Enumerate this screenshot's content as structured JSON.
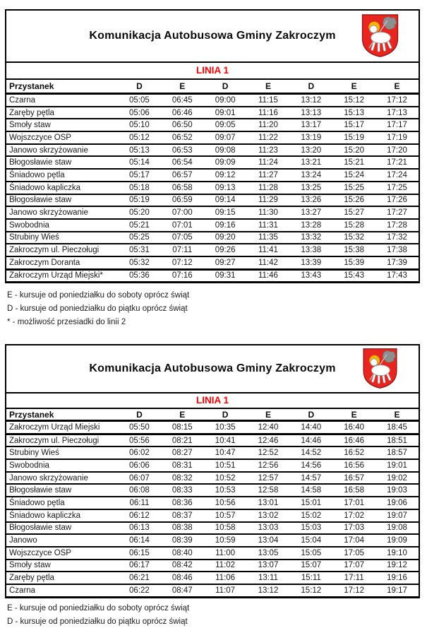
{
  "document": {
    "title": "Komunikacja Autobusowa Gminy Zakroczym",
    "line_label": "LINIA 1",
    "line_label_color": "#fe0000",
    "crest_icon": "zakroczym-coat-of-arms-icon",
    "crest_colors": {
      "shield": "#e8251f",
      "halo": "#f2b705",
      "lamb": "#ffffff",
      "banner": "#8e8e8e"
    }
  },
  "tables": [
    {
      "columns": [
        "Przystanek",
        "D",
        "E",
        "D",
        "E",
        "D",
        "E",
        "E"
      ],
      "rows": [
        {
          "stop": "Czarna",
          "times": [
            "05:05",
            "06:45",
            "09:00",
            "11:15",
            "13:12",
            "15:12",
            "17:12"
          ]
        },
        {
          "stop": "Zaręby pętla",
          "times": [
            "05:06",
            "06:46",
            "09:01",
            "11:16",
            "13:13",
            "15:13",
            "17:13"
          ]
        },
        {
          "stop": "Smoły staw",
          "times": [
            "05:10",
            "06:50",
            "09:05",
            "11:20",
            "13:17",
            "15:17",
            "17:17"
          ]
        },
        {
          "stop": "Wojszczyce OSP",
          "times": [
            "05:12",
            "06:52",
            "09:07",
            "11:22",
            "13:19",
            "15:19",
            "17:19"
          ]
        },
        {
          "stop": "Janowo skrzyżowanie",
          "times": [
            "05:13",
            "06:53",
            "09:08",
            "11:23",
            "13:20",
            "15:20",
            "17:20"
          ]
        },
        {
          "stop": "Błogosławie staw",
          "times": [
            "05:14",
            "06:54",
            "09:09",
            "11:24",
            "13:21",
            "15:21",
            "17:21"
          ]
        },
        {
          "stop": "Śniadowo pętla",
          "times": [
            "05:17",
            "06:57",
            "09:12",
            "11:27",
            "13:24",
            "15:24",
            "17:24"
          ]
        },
        {
          "stop": "Śniadowo kapliczka",
          "times": [
            "05:18",
            "06:58",
            "09:13",
            "11:28",
            "13:25",
            "15:25",
            "17:25"
          ]
        },
        {
          "stop": "Błogosławie staw",
          "times": [
            "05:19",
            "06:59",
            "09:14",
            "11:29",
            "13:26",
            "15:26",
            "17:26"
          ]
        },
        {
          "stop": "Janowo skrzyżowanie",
          "times": [
            "05:20",
            "07:00",
            "09:15",
            "11:30",
            "13:27",
            "15:27",
            "17:27"
          ]
        },
        {
          "stop": "Swobodnia",
          "times": [
            "05:21",
            "07:01",
            "09:16",
            "11:31",
            "13:28",
            "15:28",
            "17:28"
          ]
        },
        {
          "stop": "Strubiny Wieś",
          "times": [
            "05:25",
            "07:05",
            "09:20",
            "11:35",
            "13:32",
            "15:32",
            "17:32"
          ]
        },
        {
          "stop": "Zakroczym ul. Pieczoługi",
          "times": [
            "05:31",
            "07:11",
            "09:26",
            "11:41",
            "13:38",
            "15:38",
            "17:38"
          ]
        },
        {
          "stop": "Zakroczym Doranta",
          "times": [
            "05:32",
            "07:12",
            "09:27",
            "11:42",
            "13:39",
            "15:39",
            "17:39"
          ]
        },
        {
          "stop": "Zakroczym Urząd Miejski*",
          "times": [
            "05:36",
            "07:16",
            "09:31",
            "11:46",
            "13:43",
            "15:43",
            "17:43"
          ],
          "heavy_top": true
        }
      ],
      "footnotes": [
        "E - kursuje od poniedziałku do soboty oprócz świąt",
        "D - kursuje od poniedziałku do piątku oprócz świąt",
        "* - możliwość przesiadki do linii 2"
      ]
    },
    {
      "columns": [
        "Przystanek",
        "D",
        "E",
        "D",
        "E",
        "D",
        "E",
        "E"
      ],
      "rows": [
        {
          "stop": "Zakroczym Urząd Miejski",
          "times": [
            "05:50",
            "08:15",
            "10:35",
            "12:40",
            "14:40",
            "16:40",
            "18:45"
          ],
          "heavy_bottom": true
        },
        {
          "stop": "Zakroczym ul. Pieczoługi",
          "times": [
            "05:56",
            "08:21",
            "10:41",
            "12:46",
            "14:46",
            "16:46",
            "18:51"
          ]
        },
        {
          "stop": "Strubiny Wieś",
          "times": [
            "06:02",
            "08:27",
            "10:47",
            "12:52",
            "14:52",
            "16:52",
            "18:57"
          ]
        },
        {
          "stop": "Swobodnia",
          "times": [
            "06:06",
            "08:31",
            "10:51",
            "12:56",
            "14:56",
            "16:56",
            "19:01"
          ]
        },
        {
          "stop": "Janowo skrzyżowanie",
          "times": [
            "06:07",
            "08:32",
            "10:52",
            "12:57",
            "14:57",
            "16:57",
            "19:02"
          ]
        },
        {
          "stop": "Błogosławie staw",
          "times": [
            "06:08",
            "08:33",
            "10:53",
            "12:58",
            "14:58",
            "16:58",
            "19:03"
          ]
        },
        {
          "stop": "Śniadowo pętla",
          "times": [
            "06:11",
            "08:36",
            "10:56",
            "13:01",
            "15:01",
            "17:01",
            "19:06"
          ]
        },
        {
          "stop": "Śniadowo kapliczka",
          "times": [
            "06:12",
            "08:37",
            "10:57",
            "13:02",
            "15:02",
            "17:02",
            "19:07"
          ]
        },
        {
          "stop": "Błogosławie staw",
          "times": [
            "06:13",
            "08:38",
            "10:58",
            "13:03",
            "15:03",
            "17:03",
            "19:08"
          ]
        },
        {
          "stop": "Janowo",
          "times": [
            "06:14",
            "08:39",
            "10:59",
            "13:04",
            "15:04",
            "17:04",
            "19:09"
          ]
        },
        {
          "stop": "Wojszczyce OSP",
          "times": [
            "06:15",
            "08:40",
            "11:00",
            "13:05",
            "15:05",
            "17:05",
            "19:10"
          ]
        },
        {
          "stop": "Smoły staw",
          "times": [
            "06:17",
            "08:42",
            "11:02",
            "13:07",
            "15:07",
            "17:07",
            "19:12"
          ]
        },
        {
          "stop": "Zaręby pętla",
          "times": [
            "06:21",
            "08:46",
            "11:06",
            "13:11",
            "15:11",
            "17:11",
            "19:16"
          ]
        },
        {
          "stop": "Czarna",
          "times": [
            "06:22",
            "08:47",
            "11:07",
            "13:12",
            "15:12",
            "17:12",
            "19:17"
          ]
        }
      ],
      "footnotes": [
        "E - kursuje od poniedziałku do soboty oprócz świąt",
        "D - kursuje od poniedziałku do piątku oprócz świąt"
      ]
    }
  ]
}
